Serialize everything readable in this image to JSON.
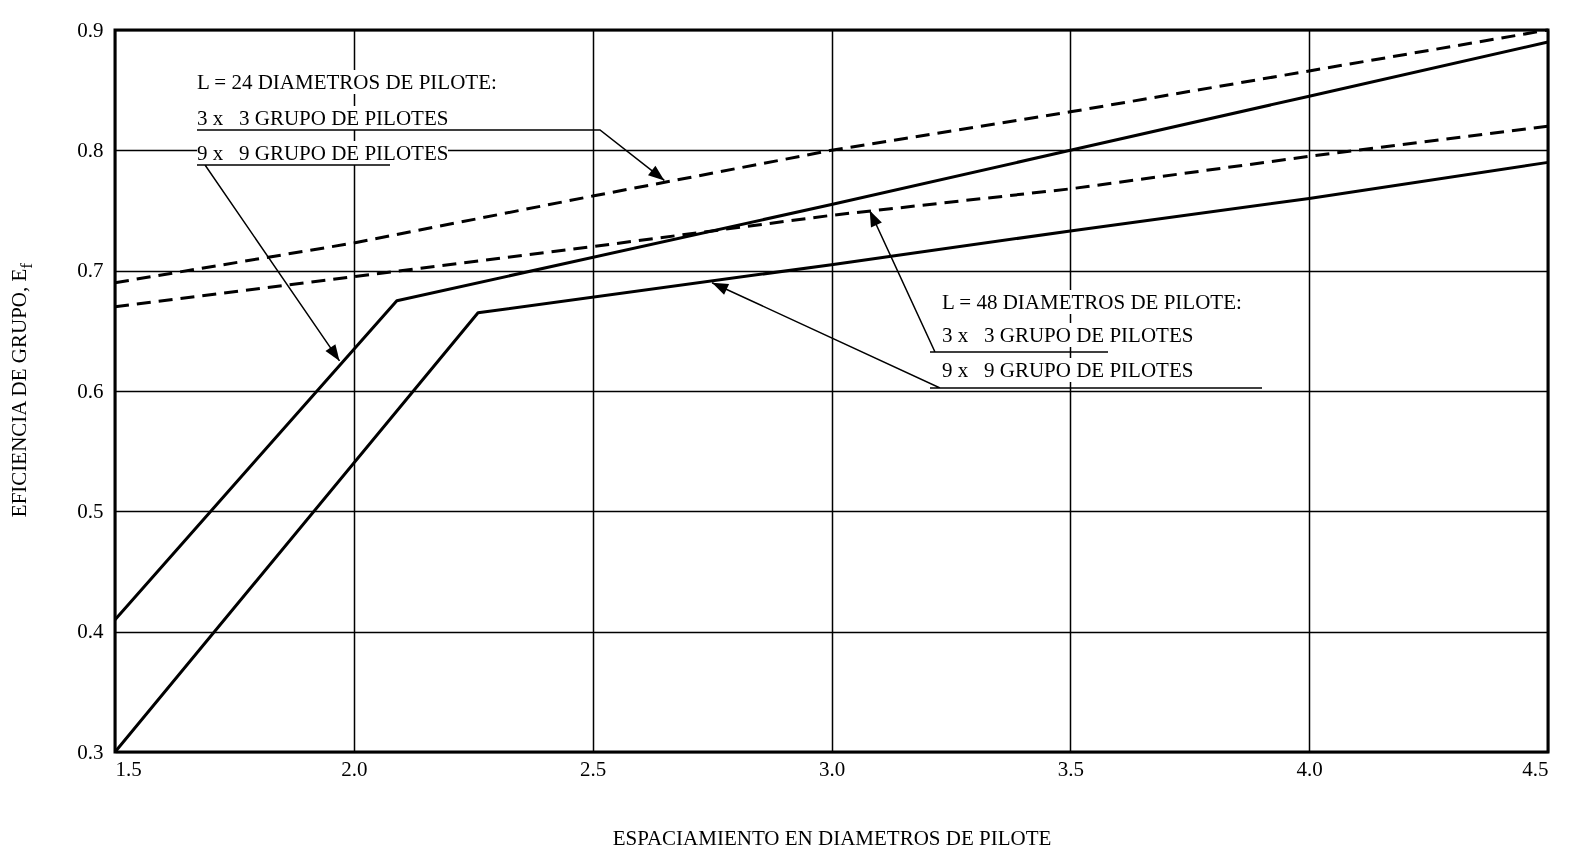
{
  "chart_data": {
    "type": "line",
    "xlabel": "ESPACIAMIENTO EN DIAMETROS DE PILOTE",
    "ylabel": "EFICIENCIA DE GRUPO, E$_{f}$",
    "xlim": [
      1.5,
      4.5
    ],
    "ylim": [
      0.3,
      0.9
    ],
    "xticks": [
      1.5,
      {
        "value": 2,
        "label": "2.0"
      },
      2.5,
      {
        "value": 3,
        "label": "3.0"
      },
      3.5,
      {
        "value": 4,
        "label": "4.0"
      },
      4.5
    ],
    "yticks": [
      0.3,
      0.4,
      0.5,
      0.6,
      0.7,
      0.8,
      0.9
    ],
    "grid": true,
    "marker": "none",
    "series": [
      {
        "color": "#000000",
        "line_style": "dashed",
        "x": [
          1.5,
          2.0,
          2.5,
          3.0,
          3.5,
          4.0,
          4.5
        ],
        "values": [
          0.69,
          0.723,
          0.762,
          0.8,
          0.832,
          0.866,
          0.9
        ]
      },
      {
        "color": "#000000",
        "line_style": "dashed",
        "x": [
          1.5,
          2.0,
          2.5,
          3.0,
          3.5,
          4.0,
          4.5
        ],
        "values": [
          0.67,
          0.695,
          0.72,
          0.746,
          0.768,
          0.795,
          0.82
        ]
      },
      {
        "color": "#000000",
        "line_style": "solid",
        "x": [
          1.5,
          2.09,
          3.0,
          3.5,
          4.0,
          4.5
        ],
        "values": [
          0.41,
          0.675,
          0.755,
          0.8,
          0.845,
          0.89
        ]
      },
      {
        "color": "#000000",
        "line_style": "solid",
        "x": [
          1.5,
          2.26,
          3.0,
          3.5,
          4.0,
          4.5
        ],
        "values": [
          0.3,
          0.665,
          0.705,
          0.733,
          0.76,
          0.79
        ]
      }
    ],
    "annotations": [
      "L = 24 DIAMETROS DE PILOTE:",
      {
        "text": "3 x   3 GRUPO DE PILOTES",
        "x": 2.65,
        "y": 0.775
      },
      {
        "text": "9 x   9 GRUPO DE PILOTES",
        "x": 1.97,
        "y": 0.625
      },
      "L = 48 DIAMETROS DE PILOTE:",
      {
        "text": "3 x   3 GRUPO DE PILOTES",
        "x": 3.08,
        "y": 0.75
      },
      {
        "text": "9 x   9 GRUPO DE PILOTES",
        "x": 2.75,
        "y": 0.69
      }
    ]
  }
}
